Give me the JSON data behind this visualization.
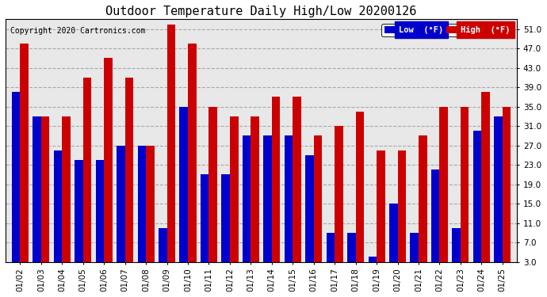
{
  "title": "Outdoor Temperature Daily High/Low 20200126",
  "copyright": "Copyright 2020 Cartronics.com",
  "dates": [
    "01/02",
    "01/03",
    "01/04",
    "01/05",
    "01/06",
    "01/07",
    "01/08",
    "01/09",
    "01/10",
    "01/11",
    "01/12",
    "01/13",
    "01/14",
    "01/15",
    "01/16",
    "01/17",
    "01/18",
    "01/19",
    "01/20",
    "01/21",
    "01/22",
    "01/23",
    "01/24",
    "01/25"
  ],
  "high": [
    48,
    33,
    33,
    41,
    45,
    41,
    27,
    52,
    48,
    35,
    33,
    33,
    37,
    37,
    29,
    31,
    34,
    26,
    26,
    29,
    35,
    35,
    38,
    35
  ],
  "low": [
    38,
    33,
    26,
    24,
    24,
    27,
    27,
    10,
    35,
    21,
    21,
    29,
    29,
    29,
    25,
    9,
    9,
    4,
    15,
    9,
    22,
    10,
    30,
    33
  ],
  "ylim_min": 3.0,
  "ylim_max": 53.0,
  "yticks": [
    3.0,
    7.0,
    11.0,
    15.0,
    19.0,
    23.0,
    27.0,
    31.0,
    35.0,
    39.0,
    43.0,
    47.0,
    51.0
  ],
  "bar_width": 0.4,
  "low_color": "#0000cc",
  "high_color": "#cc0000",
  "legend_low_label": "Low  (°F)",
  "legend_high_label": "High  (°F)",
  "background_color": "#ffffff",
  "plot_bg_color": "#e8e8e8",
  "grid_color": "#aaaaaa",
  "title_fontsize": 11,
  "axis_fontsize": 7.5,
  "copyright_fontsize": 7
}
